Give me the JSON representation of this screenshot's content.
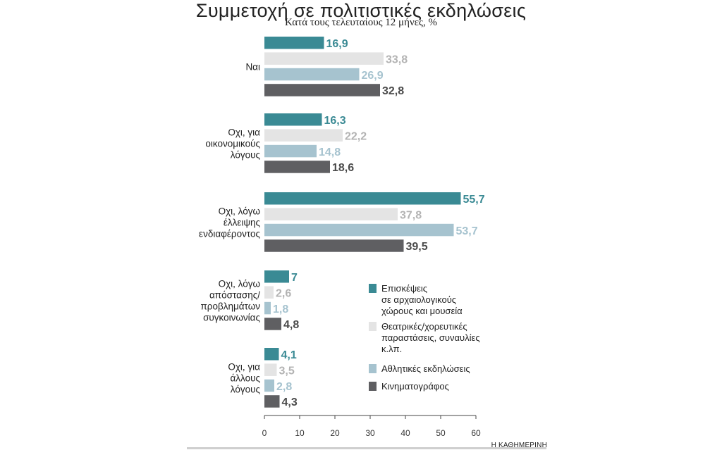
{
  "chart_data": {
    "type": "bar",
    "orientation": "horizontal",
    "title": "Συμμετοχή σε πολιτιστικές εκδηλώσεις",
    "subtitle": "Κατά τους τελευταίους 12 μήνες, %",
    "categories": [
      "Ναι",
      "Οχι, για οικονομικούς λόγους",
      "Οχι, λόγω έλλειψης ενδιαφέροντος",
      "Οχι, λόγω απόστασης/ προβλημάτων συγκοινωνίας",
      "Οχι, για άλλους λόγους"
    ],
    "category_lines": [
      [
        "Ναι"
      ],
      [
        "Οχι, για",
        "οικονομικούς",
        "λόγους"
      ],
      [
        "Οχι, λόγω",
        "έλλειψης",
        "ενδιαφέροντος"
      ],
      [
        "Οχι, λόγω",
        "απόστασης/",
        "προβλημάτων",
        "συγκοινωνίας"
      ],
      [
        "Οχι, για",
        "άλλους",
        "λόγους"
      ]
    ],
    "series": [
      {
        "name": "Επισκέψεις σε αρχαιολογικούς χώρους και μουσεία",
        "legend_lines": [
          "Επισκέψεις",
          "σε αρχαιολογικούς",
          "χώρους και μουσεία"
        ],
        "color": "#3a8a94",
        "label_color": "#3a8a94",
        "values": [
          16.9,
          16.3,
          55.7,
          7,
          4.1
        ],
        "labels": [
          "16,9",
          "16,3",
          "55,7",
          "7",
          "4,1"
        ]
      },
      {
        "name": "Θεατρικές/χορευτικές παραστάσεις, συναυλίες κ.λπ.",
        "legend_lines": [
          "Θεατρικές/χορευτικές",
          "παραστάσεις, συναυλίες",
          "κ.λπ."
        ],
        "color": "#e4e4e4",
        "label_color": "#b3b3b3",
        "values": [
          33.8,
          22.2,
          37.8,
          2.6,
          3.5
        ],
        "labels": [
          "33,8",
          "22,2",
          "37,8",
          "2,6",
          "3,5"
        ]
      },
      {
        "name": "Αθλητικές εκδηλώσεις",
        "legend_lines": [
          "Αθλητικές εκδηλώσεις"
        ],
        "color": "#a6c3cf",
        "label_color": "#a6c3cf",
        "values": [
          26.9,
          14.8,
          53.7,
          1.8,
          2.8
        ],
        "labels": [
          "26,9",
          "14,8",
          "53,7",
          "1,8",
          "2,8"
        ]
      },
      {
        "name": "Κινηματογράφος",
        "legend_lines": [
          "Κινηματογράφος"
        ],
        "color": "#5f5f62",
        "label_color": "#4a4a4a",
        "values": [
          32.8,
          18.6,
          39.5,
          4.8,
          4.3
        ],
        "labels": [
          "32,8",
          "18,6",
          "39,5",
          "4,8",
          "4,3"
        ]
      }
    ],
    "x_ticks": [
      "0",
      "10",
      "20",
      "30",
      "40",
      "50",
      "60"
    ],
    "xlim": [
      0,
      60
    ],
    "legend_position": "bottom-right",
    "grid": false
  },
  "source": "Η ΚΑΘΗΜΕΡΙΝΗ"
}
